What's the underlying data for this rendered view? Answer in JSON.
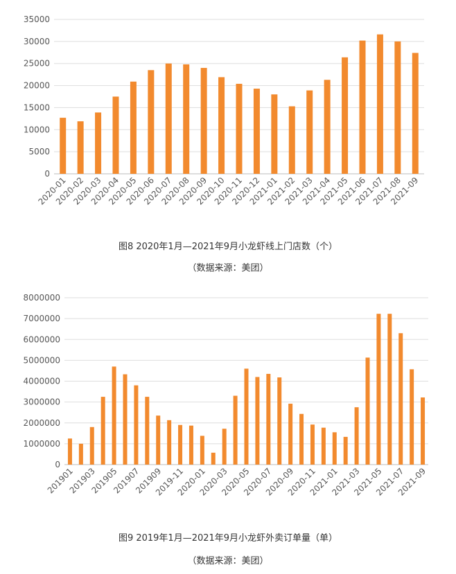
{
  "colors": {
    "bar": "#F28A2E",
    "grid": "#DDDDDD",
    "tick_text": "#555555"
  },
  "figure1": {
    "caption": "图8 2020年1月—2021年9月小龙虾线上门店数（个）",
    "source": "（数据来源：美团）"
  },
  "figure2": {
    "caption": "图9 2019年1月—2021年9月小龙虾外卖订单量（单）",
    "source": "（数据来源：美团）"
  },
  "chart_data": [
    {
      "type": "bar",
      "title": "",
      "xlabel": "",
      "ylabel": "",
      "ylim": [
        0,
        35000
      ],
      "yticks": [
        "0",
        "5000",
        "10000",
        "15000",
        "20000",
        "25000",
        "30000",
        "35000"
      ],
      "grid": true,
      "categories": [
        "2020-01",
        "2020-02",
        "2020-03",
        "2020-04",
        "2020-05",
        "2020-06",
        "2020-07",
        "2020-08",
        "2020-09",
        "2020-10",
        "2020-11",
        "2020-12",
        "2021-01",
        "2021-02",
        "2021-03",
        "2021-04",
        "2021-05",
        "2021-06",
        "2021-07",
        "2021-08",
        "2021-09"
      ],
      "xtick_labels": [
        "2020-01",
        "2020-02",
        "2020-03",
        "2020-04",
        "2020-05",
        "2020-06",
        "2020-07",
        "2020-08",
        "2020-09",
        "2020-10",
        "2020-11",
        "2020-12",
        "2021-01",
        "2021-02",
        "2021-03",
        "2021-04",
        "2021-05",
        "2021-06",
        "2021-07",
        "2021-08",
        "2021-09"
      ],
      "values": [
        12700,
        11900,
        13900,
        17500,
        20900,
        23500,
        25000,
        24800,
        24000,
        21900,
        20400,
        19300,
        18000,
        15300,
        18900,
        21300,
        26400,
        30200,
        31600,
        30000,
        27400
      ]
    },
    {
      "type": "bar",
      "title": "",
      "xlabel": "",
      "ylabel": "",
      "ylim": [
        0,
        8000000
      ],
      "yticks": [
        "0",
        "1000000",
        "2000000",
        "3000000",
        "4000000",
        "5000000",
        "6000000",
        "7000000",
        "8000000"
      ],
      "grid": true,
      "categories": [
        "201901",
        "201902",
        "201903",
        "201904",
        "201905",
        "201906",
        "201907",
        "201908",
        "201909",
        "2019-10",
        "2019-11",
        "2019-12",
        "2020-01",
        "2020-02",
        "2020-03",
        "2020-04",
        "2020-05",
        "2020-06",
        "2020-07",
        "2020-08",
        "2020-09",
        "2020-10",
        "2020-11",
        "2020-12",
        "2021-01",
        "2021-02",
        "2021-03",
        "2021-04",
        "2021-05",
        "2021-06",
        "2021-07",
        "2021-08",
        "2021-09"
      ],
      "xtick_labels": [
        "201901",
        "",
        "201903",
        "",
        "201905",
        "",
        "201907",
        "",
        "201909",
        "",
        "2019-11",
        "",
        "2020-01",
        "",
        "2020-03",
        "",
        "2020-05",
        "",
        "2020-07",
        "",
        "2020-09",
        "",
        "2020-11",
        "",
        "2021-01",
        "",
        "2021-03",
        "",
        "2021-05",
        "",
        "2021-07",
        "",
        "2021-09"
      ],
      "values": [
        1250000,
        1000000,
        1800000,
        3250000,
        4700000,
        4330000,
        3800000,
        3250000,
        2350000,
        2130000,
        1900000,
        1870000,
        1380000,
        570000,
        1720000,
        3300000,
        4600000,
        4200000,
        4350000,
        4180000,
        2920000,
        2430000,
        1920000,
        1770000,
        1550000,
        1330000,
        2750000,
        5130000,
        7230000,
        7230000,
        6300000,
        4570000,
        3220000
      ]
    }
  ]
}
